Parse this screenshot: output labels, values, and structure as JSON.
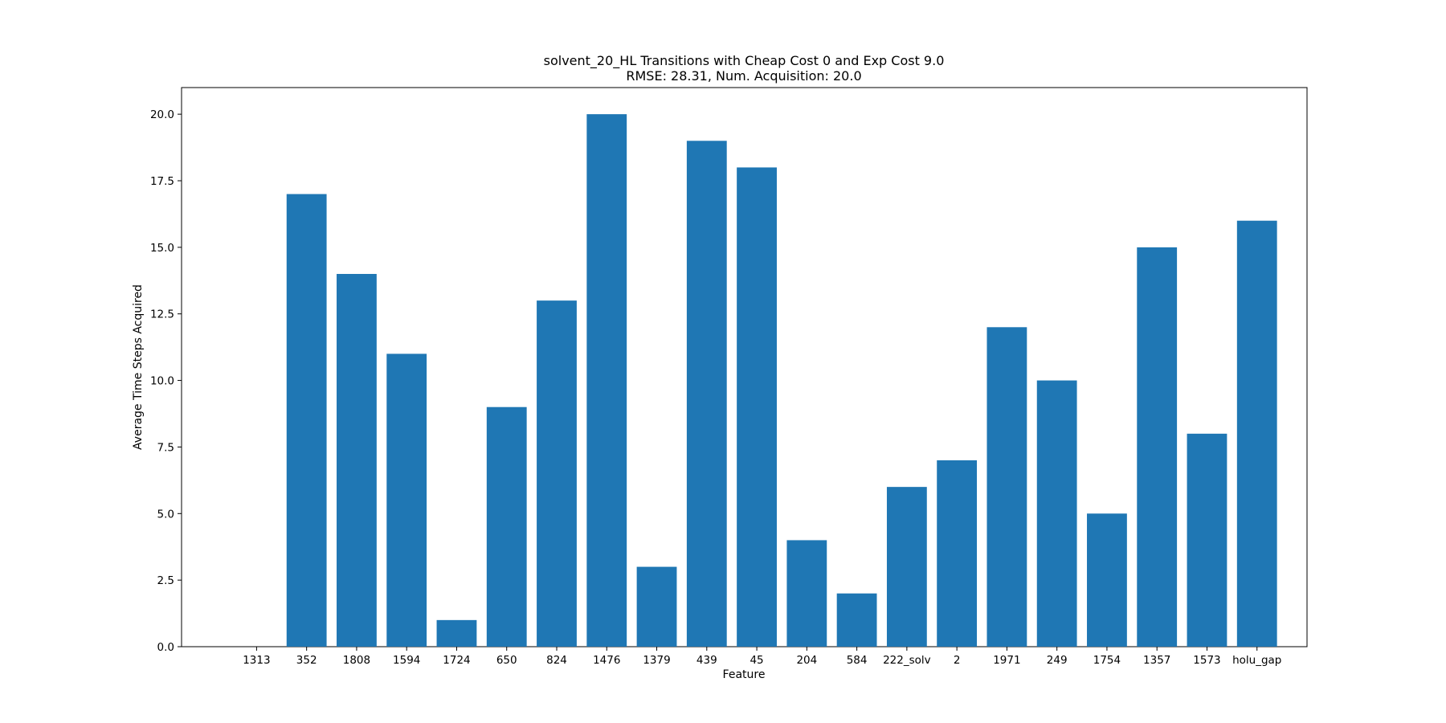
{
  "chart_data": {
    "type": "bar",
    "title": "solvent_20_HL Transitions with Cheap Cost 0 and Exp Cost 9.0",
    "subtitle": "RMSE: 28.31, Num. Acquisition: 20.0",
    "xlabel": "Feature",
    "ylabel": "Average Time Steps Acquired",
    "categories": [
      "1313",
      "352",
      "1808",
      "1594",
      "1724",
      "650",
      "824",
      "1476",
      "1379",
      "439",
      "45",
      "204",
      "584",
      "222_solv",
      "2",
      "1971",
      "249",
      "1754",
      "1357",
      "1573",
      "holu_gap"
    ],
    "values": [
      0,
      17,
      14,
      11,
      1,
      9,
      13,
      20,
      3,
      19,
      18,
      4,
      2,
      6,
      7,
      12,
      10,
      5,
      15,
      8,
      16
    ],
    "ylim": [
      0,
      21
    ],
    "yticks": [
      0,
      2.5,
      5,
      7.5,
      10,
      12.5,
      15,
      17.5,
      20
    ],
    "ytick_labels": [
      "0.0",
      "2.5",
      "5.0",
      "7.5",
      "10.0",
      "12.5",
      "15.0",
      "17.5",
      "20.0"
    ],
    "bar_color": "#1f77b4",
    "grid": false,
    "legend": "none"
  }
}
